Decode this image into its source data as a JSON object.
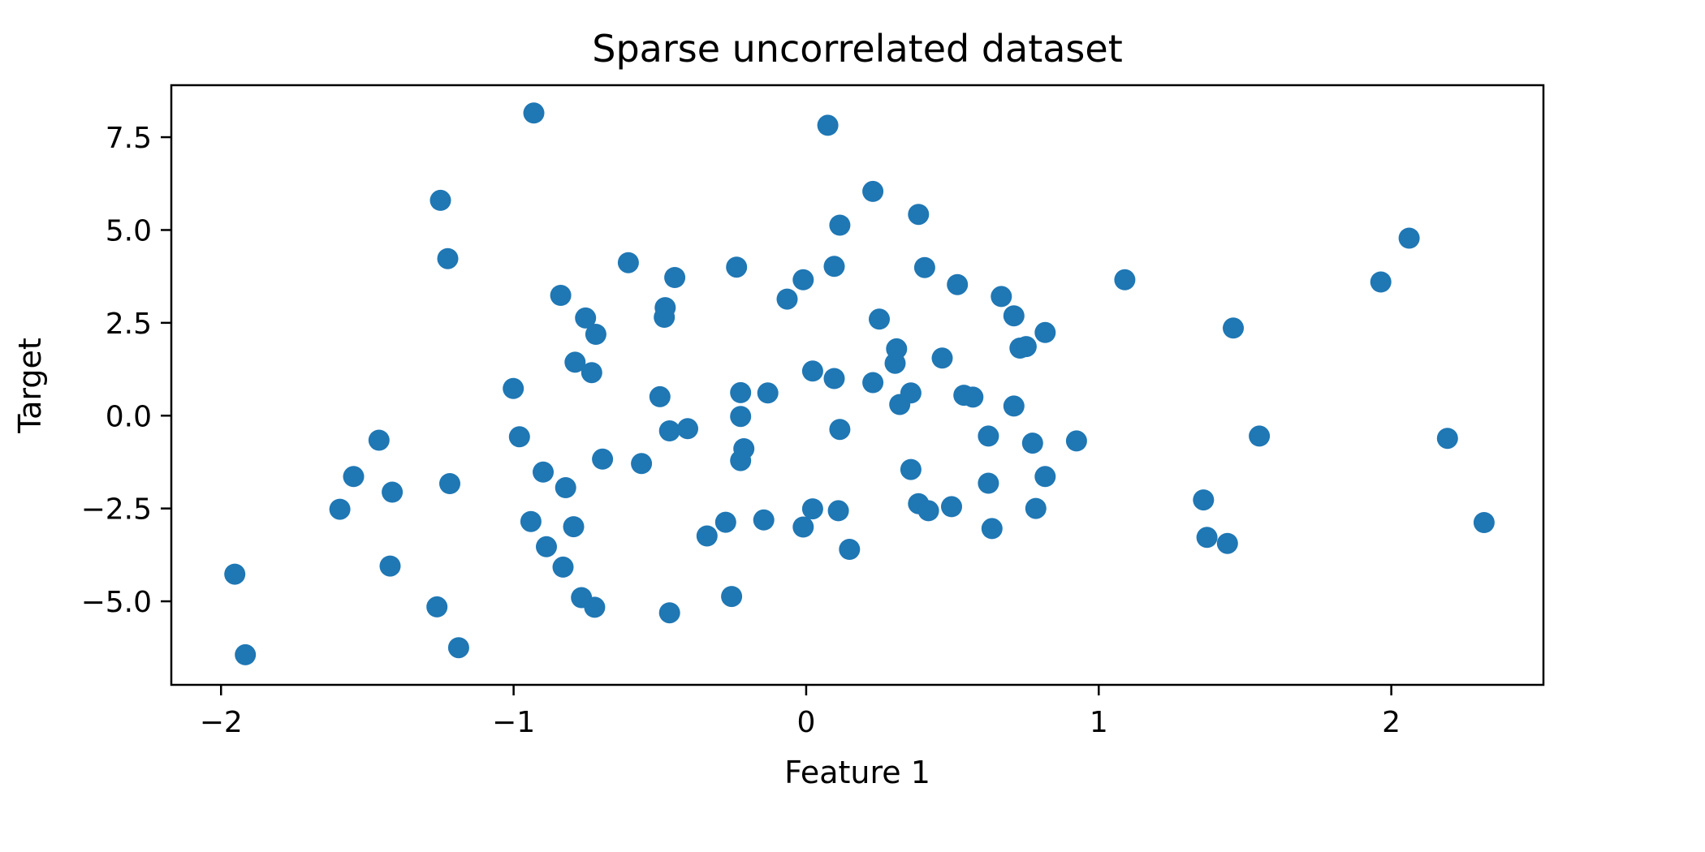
{
  "chart_data": {
    "type": "scatter",
    "title": "Sparse uncorrelated dataset",
    "xlabel": "Feature 1",
    "ylabel": "Target",
    "xlim": [
      -2.17,
      2.52
    ],
    "ylim": [
      -7.25,
      8.9
    ],
    "xticks": [
      -2,
      -1,
      0,
      1,
      2
    ],
    "xtick_labels": [
      "−2",
      "−1",
      "0",
      "1",
      "2"
    ],
    "yticks": [
      -5.0,
      -2.5,
      0.0,
      2.5,
      5.0,
      7.5
    ],
    "ytick_labels": [
      "−5.0",
      "−2.5",
      "0.0",
      "2.5",
      "5.0",
      "7.5"
    ],
    "grid": false,
    "legend": "none",
    "marker_color": "#1f77b4",
    "series": [
      {
        "points": [
          [
            -1.953,
            -4.27
          ],
          [
            -1.917,
            -6.44
          ],
          [
            -1.594,
            -2.52
          ],
          [
            -1.547,
            -1.64
          ],
          [
            -1.46,
            -0.66
          ],
          [
            -1.422,
            -4.05
          ],
          [
            -1.415,
            -2.06
          ],
          [
            -1.262,
            -5.15
          ],
          [
            -1.25,
            5.8
          ],
          [
            -1.225,
            4.23
          ],
          [
            -1.218,
            -1.83
          ],
          [
            -1.188,
            -6.25
          ],
          [
            -1.001,
            0.73
          ],
          [
            -0.98,
            -0.57
          ],
          [
            -0.941,
            -2.85
          ],
          [
            -0.931,
            8.15
          ],
          [
            -0.899,
            -1.52
          ],
          [
            -0.888,
            -3.53
          ],
          [
            -0.839,
            3.24
          ],
          [
            -0.831,
            -4.08
          ],
          [
            -0.822,
            -1.94
          ],
          [
            -0.795,
            -2.99
          ],
          [
            -0.79,
            1.44
          ],
          [
            -0.768,
            -4.9
          ],
          [
            -0.754,
            2.63
          ],
          [
            -0.733,
            1.16
          ],
          [
            -0.723,
            -5.16
          ],
          [
            -0.719,
            2.19
          ],
          [
            -0.696,
            -1.17
          ],
          [
            -0.608,
            4.12
          ],
          [
            -0.563,
            -1.29
          ],
          [
            -0.5,
            0.51
          ],
          [
            -0.485,
            2.65
          ],
          [
            -0.482,
            2.91
          ],
          [
            -0.467,
            -0.41
          ],
          [
            -0.467,
            -5.31
          ],
          [
            -0.449,
            3.72
          ],
          [
            -0.405,
            -0.35
          ],
          [
            -0.339,
            -3.24
          ],
          [
            -0.275,
            -2.87
          ],
          [
            -0.255,
            -4.87
          ],
          [
            -0.238,
            4.0
          ],
          [
            -0.224,
            0.62
          ],
          [
            -0.224,
            -0.02
          ],
          [
            -0.224,
            -1.21
          ],
          [
            -0.213,
            -0.89
          ],
          [
            -0.145,
            -2.81
          ],
          [
            -0.131,
            0.61
          ],
          [
            -0.065,
            3.14
          ],
          [
            -0.01,
            -3.0
          ],
          [
            -0.01,
            3.66
          ],
          [
            0.022,
            1.2
          ],
          [
            0.022,
            -2.51
          ],
          [
            0.096,
            1.0
          ],
          [
            0.096,
            4.02
          ],
          [
            0.11,
            -2.56
          ],
          [
            0.115,
            5.13
          ],
          [
            0.115,
            -0.37
          ],
          [
            0.074,
            7.82
          ],
          [
            0.148,
            -3.6
          ],
          [
            0.228,
            6.04
          ],
          [
            0.228,
            0.89
          ],
          [
            0.25,
            2.6
          ],
          [
            0.304,
            1.41
          ],
          [
            0.309,
            1.8
          ],
          [
            0.32,
            0.3
          ],
          [
            0.358,
            -1.45
          ],
          [
            0.358,
            0.61
          ],
          [
            0.384,
            5.42
          ],
          [
            0.384,
            -2.37
          ],
          [
            0.405,
            3.99
          ],
          [
            0.418,
            -2.56
          ],
          [
            0.465,
            1.55
          ],
          [
            0.497,
            -2.45
          ],
          [
            0.517,
            3.53
          ],
          [
            0.539,
            0.55
          ],
          [
            0.57,
            0.5
          ],
          [
            0.623,
            -0.55
          ],
          [
            0.623,
            -1.82
          ],
          [
            0.635,
            -3.04
          ],
          [
            0.667,
            3.21
          ],
          [
            0.71,
            2.69
          ],
          [
            0.71,
            0.26
          ],
          [
            0.731,
            1.82
          ],
          [
            0.752,
            1.86
          ],
          [
            0.774,
            -0.74
          ],
          [
            0.785,
            -2.5
          ],
          [
            0.817,
            2.24
          ],
          [
            0.817,
            -1.64
          ],
          [
            0.924,
            -0.68
          ],
          [
            1.089,
            3.66
          ],
          [
            1.358,
            -2.27
          ],
          [
            1.37,
            -3.28
          ],
          [
            1.44,
            -3.44
          ],
          [
            1.46,
            2.36
          ],
          [
            1.549,
            -0.55
          ],
          [
            1.964,
            3.6
          ],
          [
            2.061,
            4.78
          ],
          [
            2.192,
            -0.61
          ],
          [
            2.317,
            -2.88
          ]
        ]
      }
    ]
  }
}
